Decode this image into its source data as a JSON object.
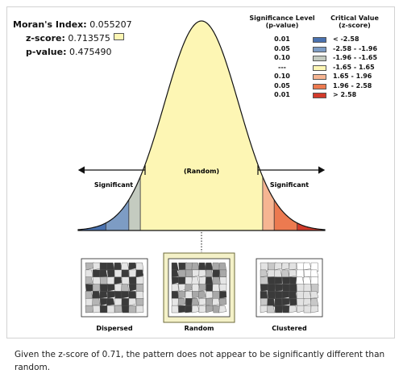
{
  "stats": {
    "morans_label": "Moran's Index:",
    "morans_value": "0.055207",
    "z_label": "z-score:",
    "z_value": "0.713575",
    "p_label": "p-value:",
    "p_value": "0.475490"
  },
  "legend": {
    "sig_header_line1": "Significance Level",
    "sig_header_line2": "(p-value)",
    "crit_header_line1": "Critical Value",
    "crit_header_line2": "(z-score)",
    "rows": [
      {
        "level": "0.01",
        "critical": "< -2.58",
        "color": "#4a72b0"
      },
      {
        "level": "0.05",
        "critical": "-2.58 - -1.96",
        "color": "#7d9cc4"
      },
      {
        "level": "0.10",
        "critical": "-1.96 - -1.65",
        "color": "#c4cbc0"
      },
      {
        "level": "---",
        "critical": "-1.65 - 1.65",
        "color": "#fdf6b4"
      },
      {
        "level": "0.10",
        "critical": "1.65 - 1.96",
        "color": "#f6b592"
      },
      {
        "level": "0.05",
        "critical": "1.96 - 2.58",
        "color": "#ec7a50"
      },
      {
        "level": "0.01",
        "critical": "> 2.58",
        "color": "#d23a2a"
      }
    ]
  },
  "diagram": {
    "center_label": "(Random)",
    "left_label": "Significant",
    "right_label": "Significant"
  },
  "patterns": [
    {
      "label": "Dispersed"
    },
    {
      "label": "Random"
    },
    {
      "label": "Clustered"
    }
  ],
  "caption": "Given the z-score of 0.71, the pattern does not appear to be significantly different than random."
}
